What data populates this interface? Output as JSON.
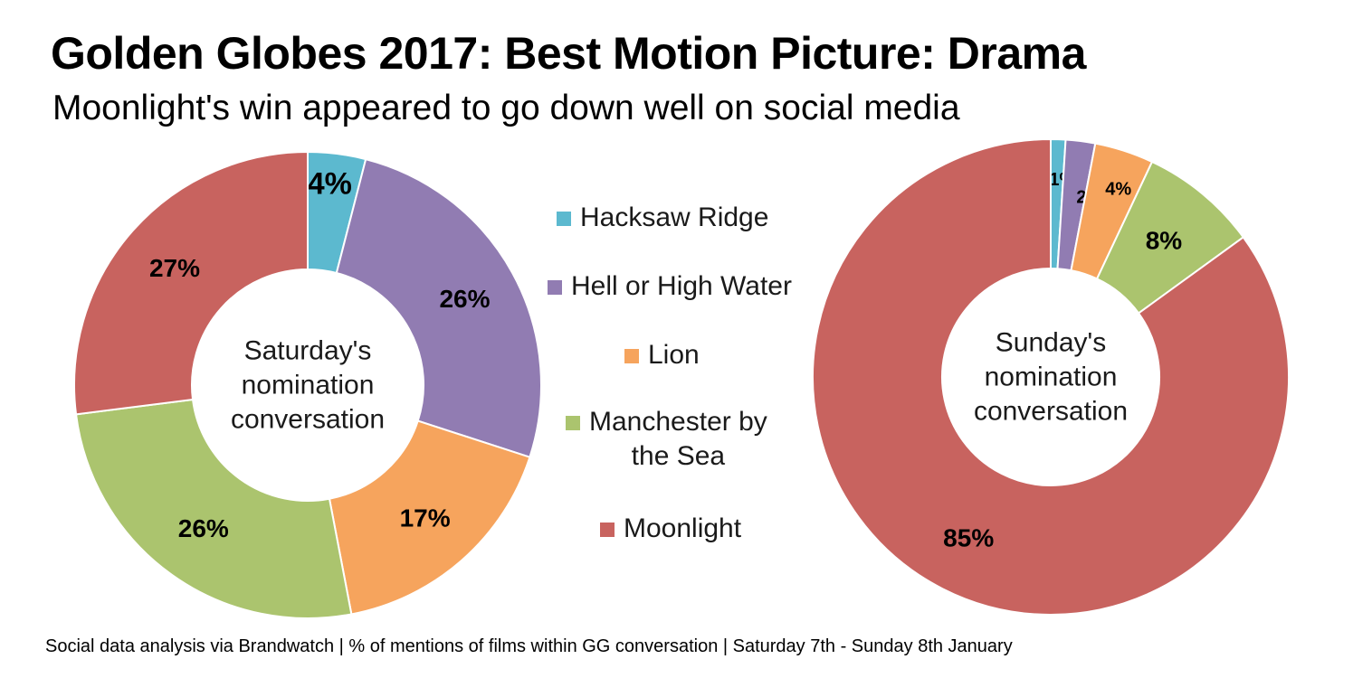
{
  "title": "Golden Globes 2017: Best Motion Picture: Drama",
  "subtitle": "Moonlight's win appeared to go down well on social media",
  "footer": "Social data analysis via Brandwatch | % of mentions of films within GG conversation | Saturday 7th - Sunday 8th January",
  "chart_data": [
    {
      "type": "pie",
      "center_label": [
        "Saturday's",
        "nomination",
        "conversation"
      ],
      "categories": [
        "Hacksaw Ridge",
        "Hell or High Water",
        "Lion",
        "Manchester by the Sea",
        "Moonlight"
      ],
      "values": [
        4,
        26,
        17,
        26,
        27
      ],
      "labels": [
        "4%",
        "26%",
        "17%",
        "26%",
        "27%"
      ],
      "colors": [
        "#5cb9cf",
        "#917cb2",
        "#f6a45d",
        "#abc46e",
        "#c8635f"
      ]
    },
    {
      "type": "pie",
      "center_label": [
        "Sunday's",
        "nomination",
        "conversation"
      ],
      "categories": [
        "Hacksaw Ridge",
        "Hell or High Water",
        "Lion",
        "Manchester by the Sea",
        "Moonlight"
      ],
      "values": [
        1,
        2,
        4,
        8,
        85
      ],
      "labels": [
        "1%",
        "2%",
        "4%",
        "8%",
        "85%"
      ],
      "colors": [
        "#5cb9cf",
        "#917cb2",
        "#f6a45d",
        "#abc46e",
        "#c8635f"
      ]
    }
  ],
  "legend": {
    "placement": "center",
    "items": [
      {
        "lines": [
          "Hacksaw Ridge"
        ],
        "color": "#5cb9cf"
      },
      {
        "lines": [
          "Hell or High Water"
        ],
        "color": "#917cb2"
      },
      {
        "lines": [
          "Lion"
        ],
        "color": "#f6a45d"
      },
      {
        "lines": [
          "Manchester by",
          "the Sea"
        ],
        "color": "#abc46e"
      },
      {
        "lines": [
          "Moonlight"
        ],
        "color": "#c8635f"
      }
    ]
  }
}
